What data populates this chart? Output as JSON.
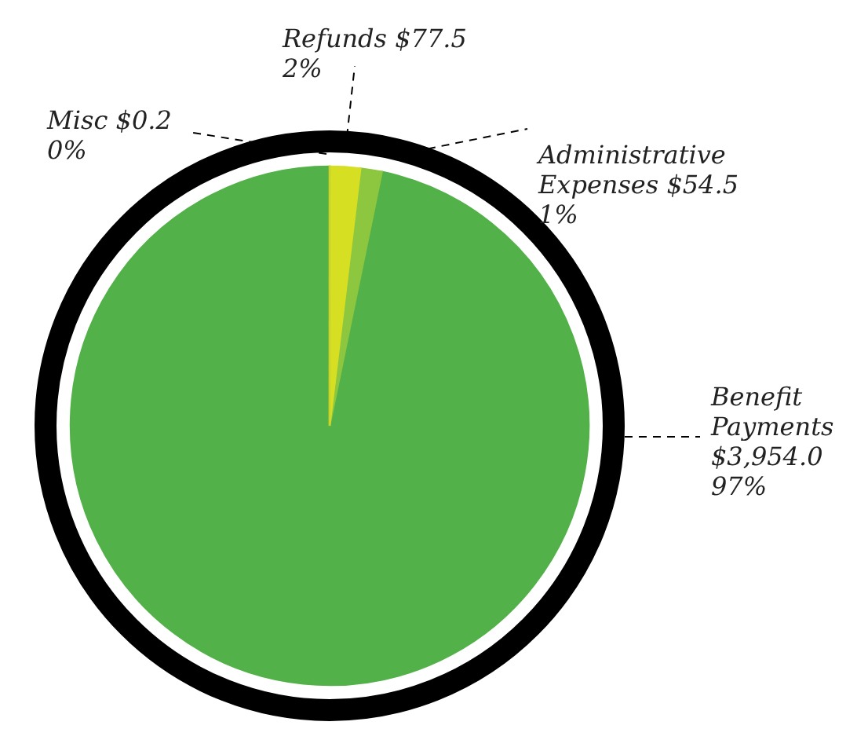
{
  "chart_data": {
    "type": "pie",
    "categories": [
      "Misc",
      "Refunds",
      "Administrative Expenses",
      "Benefit Payments"
    ],
    "values": [
      0.2,
      77.5,
      54.5,
      3954.0
    ],
    "colors": [
      "#c9d32c",
      "#d7df23",
      "#8dc63f",
      "#52b148"
    ],
    "value_labels": [
      "$0.2 0%",
      "$77.5 2%",
      "$54.5 1%",
      "$3,954.0 97%"
    ]
  }
}
